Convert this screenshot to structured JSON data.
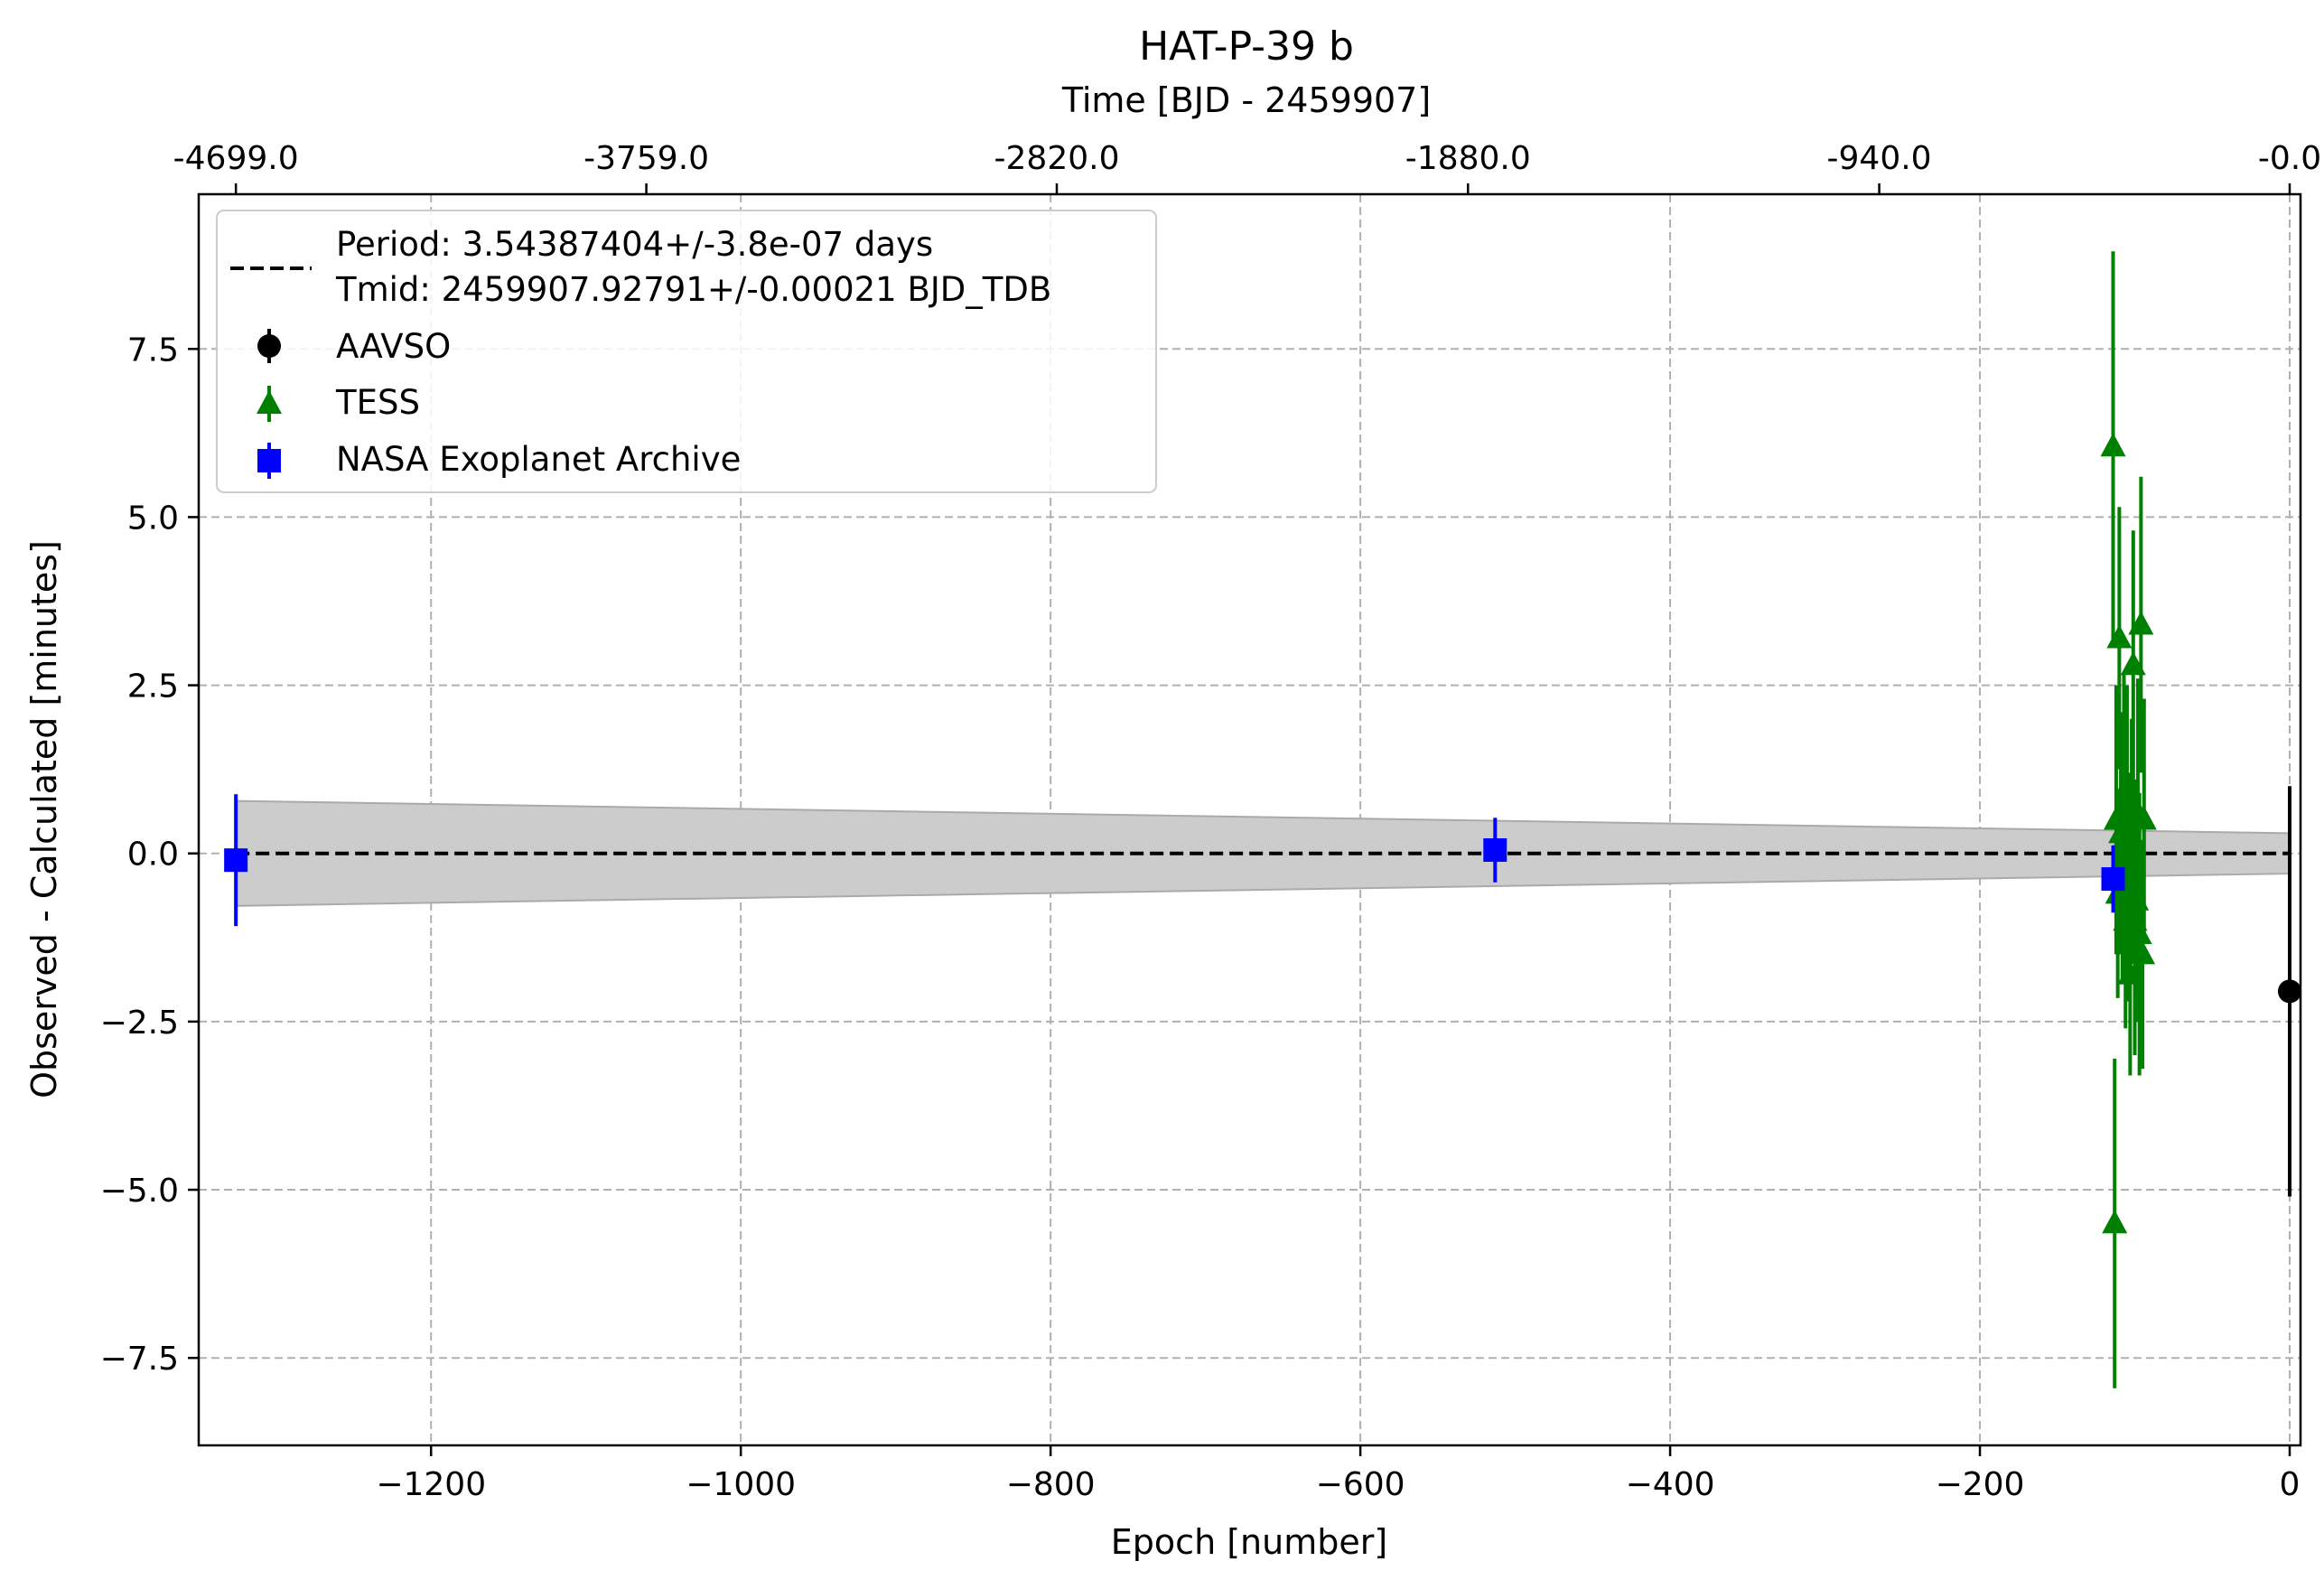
{
  "chart_data": {
    "type": "scatter",
    "title": "HAT-P-39 b",
    "xlabel": "Epoch [number]",
    "ylabel": "Observed - Calculated [minutes]",
    "top_xlabel": "Time [BJD - 2459907]",
    "xlim": [
      -1350,
      7
    ],
    "ylim": [
      -8.8,
      9.8
    ],
    "x_ticks": [
      -1200,
      -1000,
      -800,
      -600,
      -400,
      -200,
      0
    ],
    "x_tick_labels": [
      "−1200",
      "−1000",
      "−800",
      "−600",
      "−400",
      "−200",
      "0"
    ],
    "y_ticks": [
      7.5,
      5.0,
      2.5,
      0.0,
      -2.5,
      -5.0,
      -7.5
    ],
    "y_tick_labels": [
      "7.5",
      "5.0",
      "2.5",
      "0.0",
      "−2.5",
      "−5.0",
      "−7.5"
    ],
    "top_ticks_epoch": [
      -1326,
      -1061,
      -796,
      -530.5,
      -265,
      0
    ],
    "top_tick_labels": [
      "-4699.0",
      "-3759.0",
      "-2820.0",
      "-1880.0",
      "-940.0",
      "-0.0"
    ],
    "grid": true,
    "legend_position": "top-left",
    "fit": {
      "label_line1": "Period: 3.54387404+/-3.8e-07 days",
      "label_line2": "Tmid: 2459907.92791+/-0.00021 BJD_TDB",
      "color": "#000000",
      "band": {
        "x": [
          -1326,
          0
        ],
        "upper": [
          0.78,
          0.3
        ],
        "lower": [
          -0.78,
          -0.3
        ],
        "color": "#cccccc",
        "edge": "#aaaaaa"
      }
    },
    "series": [
      {
        "name": "AAVSO",
        "marker": "circle",
        "color": "#000000",
        "points": [
          {
            "x": 0,
            "y": -2.05,
            "err": 3.05
          }
        ]
      },
      {
        "name": "TESS",
        "marker": "triangle",
        "color": "#008000",
        "points": [
          {
            "x": -114,
            "y": 6.05,
            "err": 2.9
          },
          {
            "x": -113,
            "y": -5.5,
            "err": 2.45
          },
          {
            "x": -112,
            "y": 0.5,
            "err": 2.0
          },
          {
            "x": -111,
            "y": -0.6,
            "err": 1.55
          },
          {
            "x": -110,
            "y": 3.2,
            "err": 1.95
          },
          {
            "x": -109,
            "y": 0.3,
            "err": 1.8
          },
          {
            "x": -108,
            "y": -0.2,
            "err": 1.7
          },
          {
            "x": -107,
            "y": 0.7,
            "err": 2.0
          },
          {
            "x": -106,
            "y": -1.0,
            "err": 1.6
          },
          {
            "x": -105,
            "y": 1.0,
            "err": 1.5
          },
          {
            "x": -104,
            "y": -0.5,
            "err": 1.7
          },
          {
            "x": -103,
            "y": -1.8,
            "err": 1.5
          },
          {
            "x": -102,
            "y": 0.2,
            "err": 1.8
          },
          {
            "x": -101,
            "y": 2.8,
            "err": 2.0
          },
          {
            "x": -100,
            "y": -1.0,
            "err": 2.0
          },
          {
            "x": -99,
            "y": -0.7,
            "err": 1.8
          },
          {
            "x": -98,
            "y": 0.6,
            "err": 2.0
          },
          {
            "x": -97,
            "y": -1.2,
            "err": 2.1
          },
          {
            "x": -96,
            "y": 3.4,
            "err": 2.2
          },
          {
            "x": -95,
            "y": -1.5,
            "err": 1.7
          },
          {
            "x": -94,
            "y": 0.5,
            "err": 1.8
          }
        ]
      },
      {
        "name": "NASA Exoplanet Archive",
        "marker": "square",
        "color": "#0000ff",
        "points": [
          {
            "x": -1326,
            "y": -0.1,
            "err": 0.98
          },
          {
            "x": -513,
            "y": 0.05,
            "err": 0.48
          },
          {
            "x": -114,
            "y": -0.38,
            "err": 0.5
          }
        ]
      }
    ]
  }
}
